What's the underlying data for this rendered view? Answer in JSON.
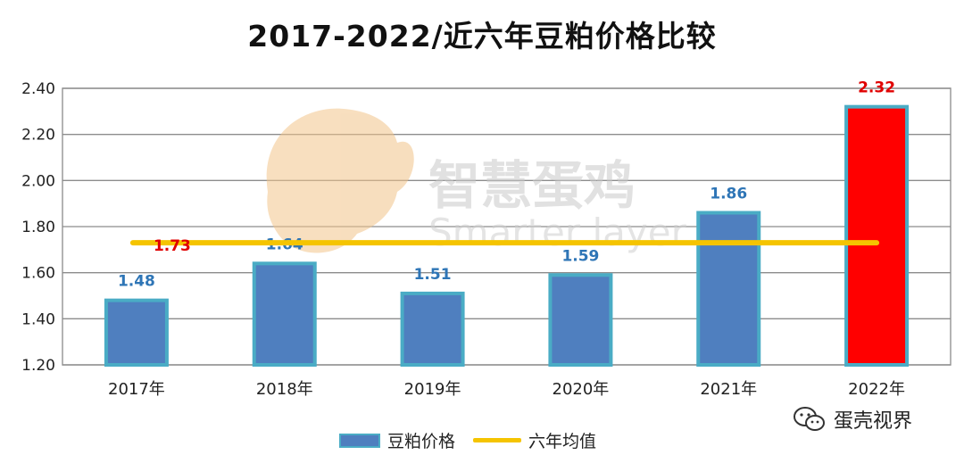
{
  "chart_data": {
    "type": "bar",
    "title": "2017-2022/近六年豆粕价格比较",
    "categories": [
      "2017年",
      "2018年",
      "2019年",
      "2020年",
      "2021年",
      "2022年"
    ],
    "series": [
      {
        "name": "豆粕价格",
        "values": [
          1.48,
          1.64,
          1.51,
          1.59,
          1.86,
          2.32
        ],
        "color": "#4f7fbf",
        "highlight_color": "#ff0000"
      },
      {
        "name": "六年均值",
        "type": "line",
        "value": 1.73,
        "label": "1.73",
        "color": "#f5c400"
      }
    ],
    "data_labels": [
      "1.48",
      "1.64",
      "1.51",
      "1.59",
      "1.86",
      "2.32"
    ],
    "ylim": [
      1.2,
      2.4
    ],
    "yticks": [
      "1.20",
      "1.40",
      "1.60",
      "1.80",
      "2.00",
      "2.20",
      "2.40"
    ],
    "grid": true,
    "legend_position": "bottom"
  },
  "logo_text": {
    "cn": "智慧蛋鸡",
    "en": "Smarter layer"
  },
  "watermark": {
    "text": "蛋壳视界",
    "icon": "wechat-icon"
  }
}
